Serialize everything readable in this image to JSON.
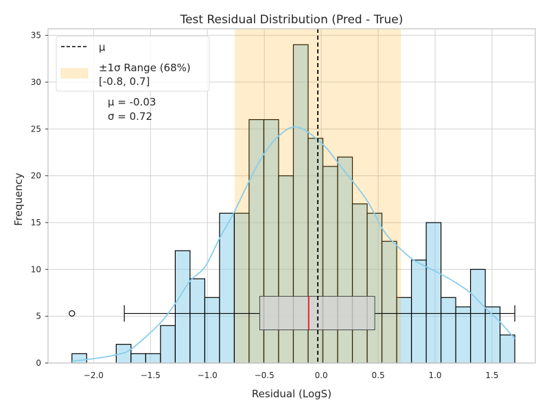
{
  "chart_data": {
    "type": "bar",
    "title": "Test Residual Distribution (Pred - True)",
    "xlabel": "Residual (LogS)",
    "ylabel": "Frequency",
    "xlim": [
      -2.4,
      1.88
    ],
    "ylim": [
      0,
      35.7
    ],
    "grid": true,
    "xticks": [
      -2.0,
      -1.5,
      -1.0,
      -0.5,
      0.0,
      0.5,
      1.0,
      1.5
    ],
    "xtick_labels": [
      "−2.0",
      "−1.5",
      "−1.0",
      "−0.5",
      "0.0",
      "0.5",
      "1.0",
      "1.5"
    ],
    "yticks": [
      0,
      5,
      10,
      15,
      20,
      25,
      30,
      35
    ],
    "ytick_labels": [
      "0",
      "5",
      "10",
      "15",
      "20",
      "25",
      "30",
      "35"
    ],
    "histogram": {
      "range": [
        -2.19,
        1.7
      ],
      "counts": [
        1,
        0,
        0,
        2,
        1,
        1,
        4,
        12,
        9,
        7,
        16,
        16,
        26,
        26,
        20,
        34,
        24,
        21,
        22,
        17,
        16,
        13,
        7,
        11,
        15,
        7,
        6,
        10,
        6,
        3
      ],
      "color": "#87ceeb"
    },
    "kde": {
      "color": "#87ceeb",
      "x": [
        -2.19,
        -1.98,
        -1.8,
        -1.67,
        -1.42,
        -1.28,
        -1.15,
        -1.02,
        -0.89,
        -0.77,
        -0.63,
        -0.51,
        -0.37,
        -0.21,
        0.01,
        0.19,
        0.4,
        0.55,
        0.66,
        0.8,
        0.92,
        1.05,
        1.18,
        1.31,
        1.44,
        1.57,
        1.7
      ],
      "y": [
        0.2,
        0.5,
        0.9,
        1.5,
        4.2,
        6.4,
        8.8,
        10.3,
        13.4,
        16.0,
        19.5,
        22.2,
        24.3,
        25.2,
        23.4,
        20.7,
        17.4,
        14.1,
        12.6,
        11.1,
        10.3,
        9.5,
        8.6,
        7.5,
        5.9,
        4.4,
        2.6
      ]
    },
    "mean_line": {
      "x": -0.03,
      "label": "μ",
      "color": "#000000"
    },
    "sigma_span": {
      "x0": -0.76,
      "x1": 0.7,
      "label_line1": "±1σ Range (68%)",
      "label_line2": "[-0.8, 0.7]",
      "color": "#ffa500"
    },
    "boxplot": {
      "y": 5.3,
      "whisker_low": -1.73,
      "q1": -0.54,
      "median": -0.11,
      "q3": 0.47,
      "whisker_high": 1.7,
      "outliers": [
        -2.19
      ],
      "median_color": "#ff0000"
    },
    "annotation": {
      "line1": "μ = -0.03",
      "line2": "σ = 0.72"
    },
    "legend": "top-left"
  }
}
